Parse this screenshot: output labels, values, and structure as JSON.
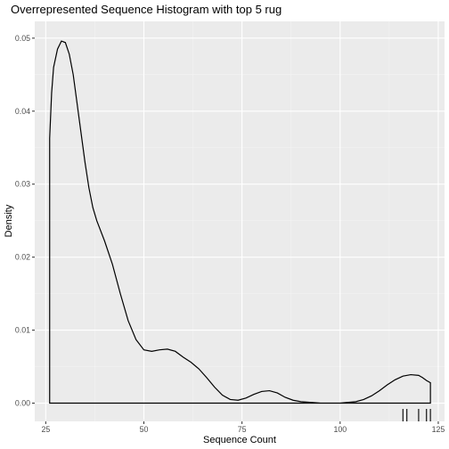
{
  "chart_data": {
    "type": "area",
    "title": "Overrepresented Sequence Histogram with top 5 rug",
    "xlabel": "Sequence Count",
    "ylabel": "Density",
    "xlim": [
      22.2,
      126.6
    ],
    "ylim": [
      -0.0025,
      0.0523
    ],
    "x_ticks": [
      25,
      50,
      75,
      100,
      125
    ],
    "y_ticks": [
      0.0,
      0.01,
      0.02,
      0.03,
      0.04,
      0.05
    ],
    "x_tick_labels": [
      "25",
      "50",
      "75",
      "100",
      "125"
    ],
    "y_tick_labels": [
      "0.00",
      "0.01",
      "0.02",
      "0.03",
      "0.04",
      "0.05"
    ],
    "grid": true,
    "legend": "none",
    "colors": {
      "panel": "#ebebeb",
      "grid_major": "#ffffff",
      "grid_minor": "#f4f4f4",
      "line": "#000000",
      "tick_label": "#4d4d4d"
    },
    "series": [
      {
        "x": [
          26,
          26.5,
          27,
          28,
          29,
          30,
          31,
          32,
          33,
          34,
          35,
          36,
          37,
          38,
          40,
          42,
          44,
          46,
          48,
          50,
          52,
          54,
          56,
          58,
          60,
          62,
          64,
          66,
          68,
          70,
          72,
          74,
          76,
          78,
          80,
          82,
          84,
          86,
          88,
          90,
          95,
          100,
          104,
          106,
          108,
          110,
          112,
          114,
          116,
          118,
          120,
          121,
          122,
          123
        ],
        "y": [
          0.0363,
          0.0425,
          0.046,
          0.0485,
          0.0496,
          0.0494,
          0.0478,
          0.045,
          0.041,
          0.037,
          0.033,
          0.0295,
          0.0268,
          0.025,
          0.0222,
          0.019,
          0.015,
          0.0113,
          0.0087,
          0.0073,
          0.0071,
          0.0073,
          0.0074,
          0.0071,
          0.0063,
          0.0056,
          0.0047,
          0.0035,
          0.0022,
          0.0011,
          0.0005,
          0.0004,
          0.0007,
          0.0012,
          0.0016,
          0.0017,
          0.0014,
          0.0008,
          0.0004,
          0.0002,
          0.0,
          0.0,
          0.0002,
          0.0005,
          0.001,
          0.0017,
          0.0025,
          0.0032,
          0.0037,
          0.0039,
          0.0038,
          0.0035,
          0.0031,
          0.0028
        ]
      }
    ],
    "rug": [
      116,
      117,
      120,
      122,
      123
    ]
  }
}
